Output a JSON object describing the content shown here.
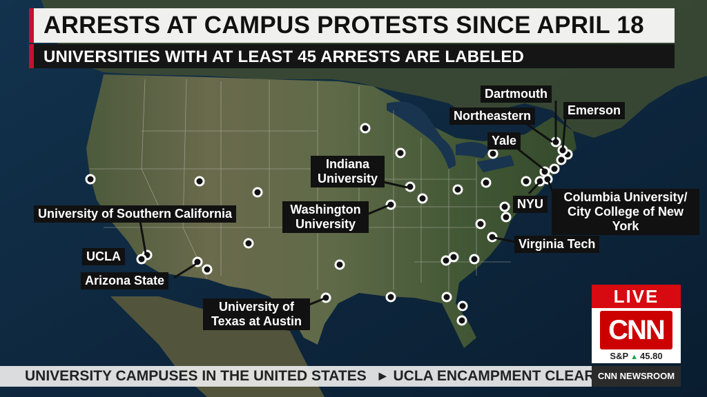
{
  "header": {
    "title": "ARRESTS AT CAMPUS PROTESTS SINCE APRIL 18",
    "subtitle": "UNIVERSITIES WITH AT LEAST 45 ARRESTS ARE LABELED"
  },
  "labels": {
    "usc": "University of Southern California",
    "ucla": "UCLA",
    "arizona_state": "Arizona State",
    "ut_austin": "University of Texas at Austin",
    "washington": "Washington University",
    "indiana": "Indiana University",
    "yale": "Yale",
    "northeastern": "Northeastern",
    "dartmouth": "Dartmouth",
    "emerson": "Emerson",
    "nyu": "NYU",
    "columbia": "Columbia University/ City College of New York",
    "virginia_tech": "Virginia Tech"
  },
  "ticker": {
    "item1": "UNIVERSITY CAMPUSES IN THE UNITED STATES",
    "item2": "UCLA ENCAMPMENT CLEARED"
  },
  "bug": {
    "live": "LIVE",
    "logo": "CNN",
    "stock_name": "S&P",
    "stock_value": "45.80",
    "show": "CNN NEWSROOM"
  },
  "colors": {
    "accent_red": "#c8102e",
    "live_red": "#d60a10",
    "stock_up": "#1aa34a"
  }
}
